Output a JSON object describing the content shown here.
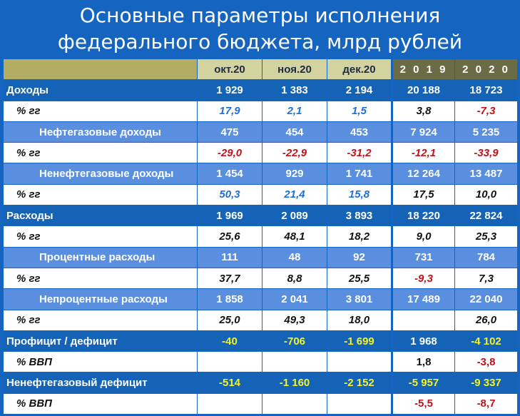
{
  "title_line1": "Основные параметры исполнения",
  "title_line2": "федерального бюджета, млрд рублей",
  "columns": [
    "",
    "окт.20",
    "ноя.20",
    "дек.20",
    "2 0 1 9",
    "2 0 2 0"
  ],
  "rows": [
    {
      "label": "Доходы",
      "values": [
        "1 929",
        "1 383",
        "2 194",
        "20 188",
        "18 723"
      ]
    },
    {
      "label": "% гг",
      "values": [
        "17,9",
        "2,1",
        "1,5",
        "3,8",
        "-7,3"
      ]
    },
    {
      "label": "Нефтегазовые доходы",
      "values": [
        "475",
        "454",
        "453",
        "7 924",
        "5 235"
      ]
    },
    {
      "label": "% гг",
      "values": [
        "-29,0",
        "-22,9",
        "-31,2",
        "-12,1",
        "-33,9"
      ]
    },
    {
      "label": "Ненефтегазовые доходы",
      "values": [
        "1 454",
        "929",
        "1 741",
        "12 264",
        "13 487"
      ]
    },
    {
      "label": "% гг",
      "values": [
        "50,3",
        "21,4",
        "15,8",
        "17,5",
        "10,0"
      ]
    },
    {
      "label": "Расходы",
      "values": [
        "1 969",
        "2 089",
        "3 893",
        "18 220",
        "22 824"
      ]
    },
    {
      "label": "% гг",
      "values": [
        "25,6",
        "48,1",
        "18,2",
        "9,0",
        "25,3"
      ]
    },
    {
      "label": "Процентные расходы",
      "values": [
        "111",
        "48",
        "92",
        "731",
        "784"
      ]
    },
    {
      "label": "% гг",
      "values": [
        "37,7",
        "8,8",
        "25,5",
        "-9,3",
        "7,3"
      ]
    },
    {
      "label": "Непроцентные расходы",
      "values": [
        "1 858",
        "2 041",
        "3 801",
        "17 489",
        "22 040"
      ]
    },
    {
      "label": "% гг",
      "values": [
        "25,0",
        "49,3",
        "18,0",
        "",
        "26,0"
      ]
    },
    {
      "label": "Профицит / дефицит",
      "values": [
        "-40",
        "-706",
        "-1 699",
        "1 968",
        "-4 102"
      ]
    },
    {
      "label": "% ВВП",
      "values": [
        "",
        "",
        "",
        "1,8",
        "-3,8"
      ]
    },
    {
      "label": "Ненефтегазовый дефицит",
      "values": [
        "-514",
        "-1 160",
        "-2 152",
        "-5 957",
        "-9 337"
      ]
    },
    {
      "label": "% ВВП",
      "values": [
        "",
        "",
        "",
        "-5,5",
        "-8,7"
      ]
    }
  ],
  "colors": {
    "background": "#1565c0",
    "header_light": "#d3d3a0",
    "header_dark": "#6b6b45",
    "main_row": "#1463b6",
    "sub_row": "#5a8fe0",
    "pct_row": "#ffffff",
    "positive_blue": "#1e6fd8",
    "negative_red": "#c0121a",
    "yellow": "#f3f32a"
  }
}
